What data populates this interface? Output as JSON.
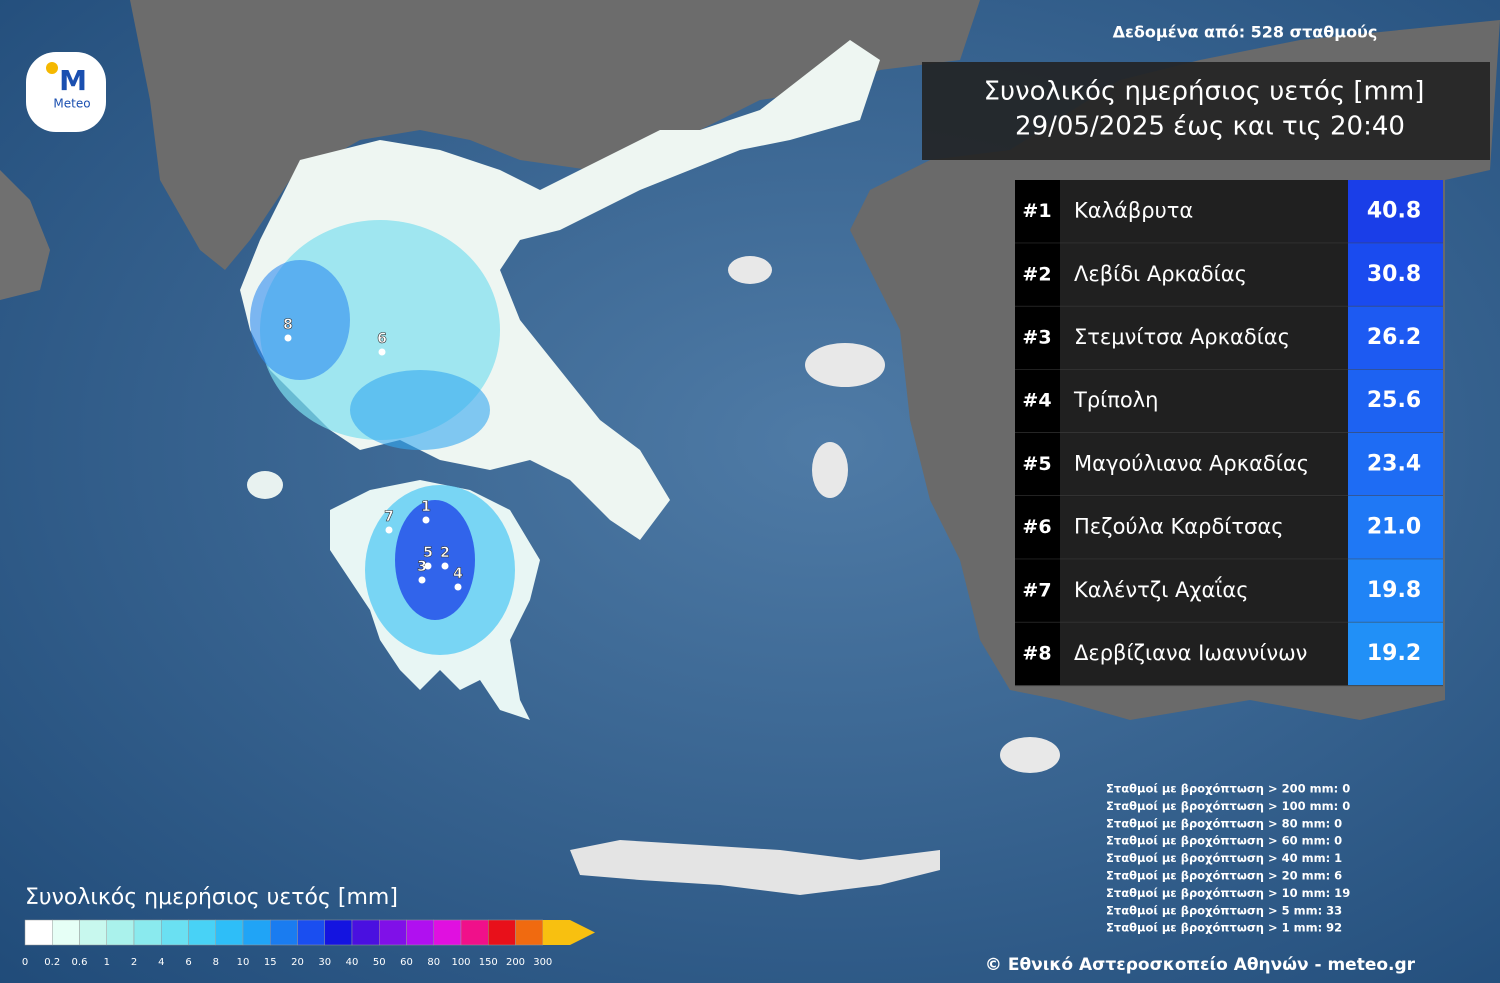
{
  "header": {
    "stations": "Δεδομένα από: 528 σταθμούς",
    "title_line1": "Συνολικός ημερήσιος υετός [mm]",
    "title_line2": "29/05/2025 έως και τις 20:40",
    "logo": "Meteo"
  },
  "ranking": [
    {
      "rank": "#1",
      "name": "Καλάβρυτα",
      "value": "40.8",
      "color": "#1a3ee8"
    },
    {
      "rank": "#2",
      "name": "Λεβίδι Αρκαδίας",
      "value": "30.8",
      "color": "#1a4bef"
    },
    {
      "rank": "#3",
      "name": "Στεμνίτσα Αρκαδίας",
      "value": "26.2",
      "color": "#1d5af2"
    },
    {
      "rank": "#4",
      "name": "Τρίπολη",
      "value": "25.6",
      "color": "#1d62f2"
    },
    {
      "rank": "#5",
      "name": "Μαγούλιανα Αρκαδίας",
      "value": "23.4",
      "color": "#1e6cf4"
    },
    {
      "rank": "#6",
      "name": "Πεζούλα Καρδίτσας",
      "value": "21.0",
      "color": "#1f78f5"
    },
    {
      "rank": "#7",
      "name": "Καλέντζι Αχαΐας",
      "value": "19.8",
      "color": "#2084f6"
    },
    {
      "rank": "#8",
      "name": "Δερβίζιανα Ιωαννίνων",
      "value": "19.2",
      "color": "#2190f7"
    }
  ],
  "map_markers": [
    "1",
    "2",
    "3",
    "4",
    "5",
    "6",
    "7",
    "8"
  ],
  "legend": {
    "title": "Συνολικός ημερήσιος υετός [mm]",
    "items": [
      {
        "label": "0",
        "color": "#ffffff"
      },
      {
        "label": "0.2",
        "color": "#e6fff6"
      },
      {
        "label": "0.6",
        "color": "#c8f8ee"
      },
      {
        "label": "1",
        "color": "#aaf2ec"
      },
      {
        "label": "2",
        "color": "#8aeaee"
      },
      {
        "label": "4",
        "color": "#6ae0f2"
      },
      {
        "label": "6",
        "color": "#48d2f6"
      },
      {
        "label": "8",
        "color": "#2ebef8"
      },
      {
        "label": "10",
        "color": "#20a4f6"
      },
      {
        "label": "15",
        "color": "#1a7cf0"
      },
      {
        "label": "20",
        "color": "#1a4ef0"
      },
      {
        "label": "30",
        "color": "#1414e0"
      },
      {
        "label": "40",
        "color": "#4a10e0"
      },
      {
        "label": "50",
        "color": "#8010e8"
      },
      {
        "label": "60",
        "color": "#b010f0"
      },
      {
        "label": "80",
        "color": "#e010e0"
      },
      {
        "label": "100",
        "color": "#f0108a"
      },
      {
        "label": "150",
        "color": "#e8101a"
      },
      {
        "label": "200",
        "color": "#f06a10"
      },
      {
        "label": "300",
        "color": "#f8c010"
      }
    ]
  },
  "stats": [
    "Σταθμοί με βροχόπτωση > 200 mm: 0",
    "Σταθμοί με βροχόπτωση > 100 mm: 0",
    "Σταθμοί με βροχόπτωση > 80 mm: 0",
    "Σταθμοί με βροχόπτωση > 60 mm: 0",
    "Σταθμοί με βροχόπτωση > 40 mm: 1",
    "Σταθμοί με βροχόπτωση > 20 mm: 6",
    "Σταθμοί με βροχόπτωση > 10 mm: 19",
    "Σταθμοί με βροχόπτωση > 5 mm: 33",
    "Σταθμοί με βροχόπτωση > 1 mm: 92"
  ],
  "footer": "© Εθνικό Αστεροσκοπείο Αθηνών - meteo.gr"
}
